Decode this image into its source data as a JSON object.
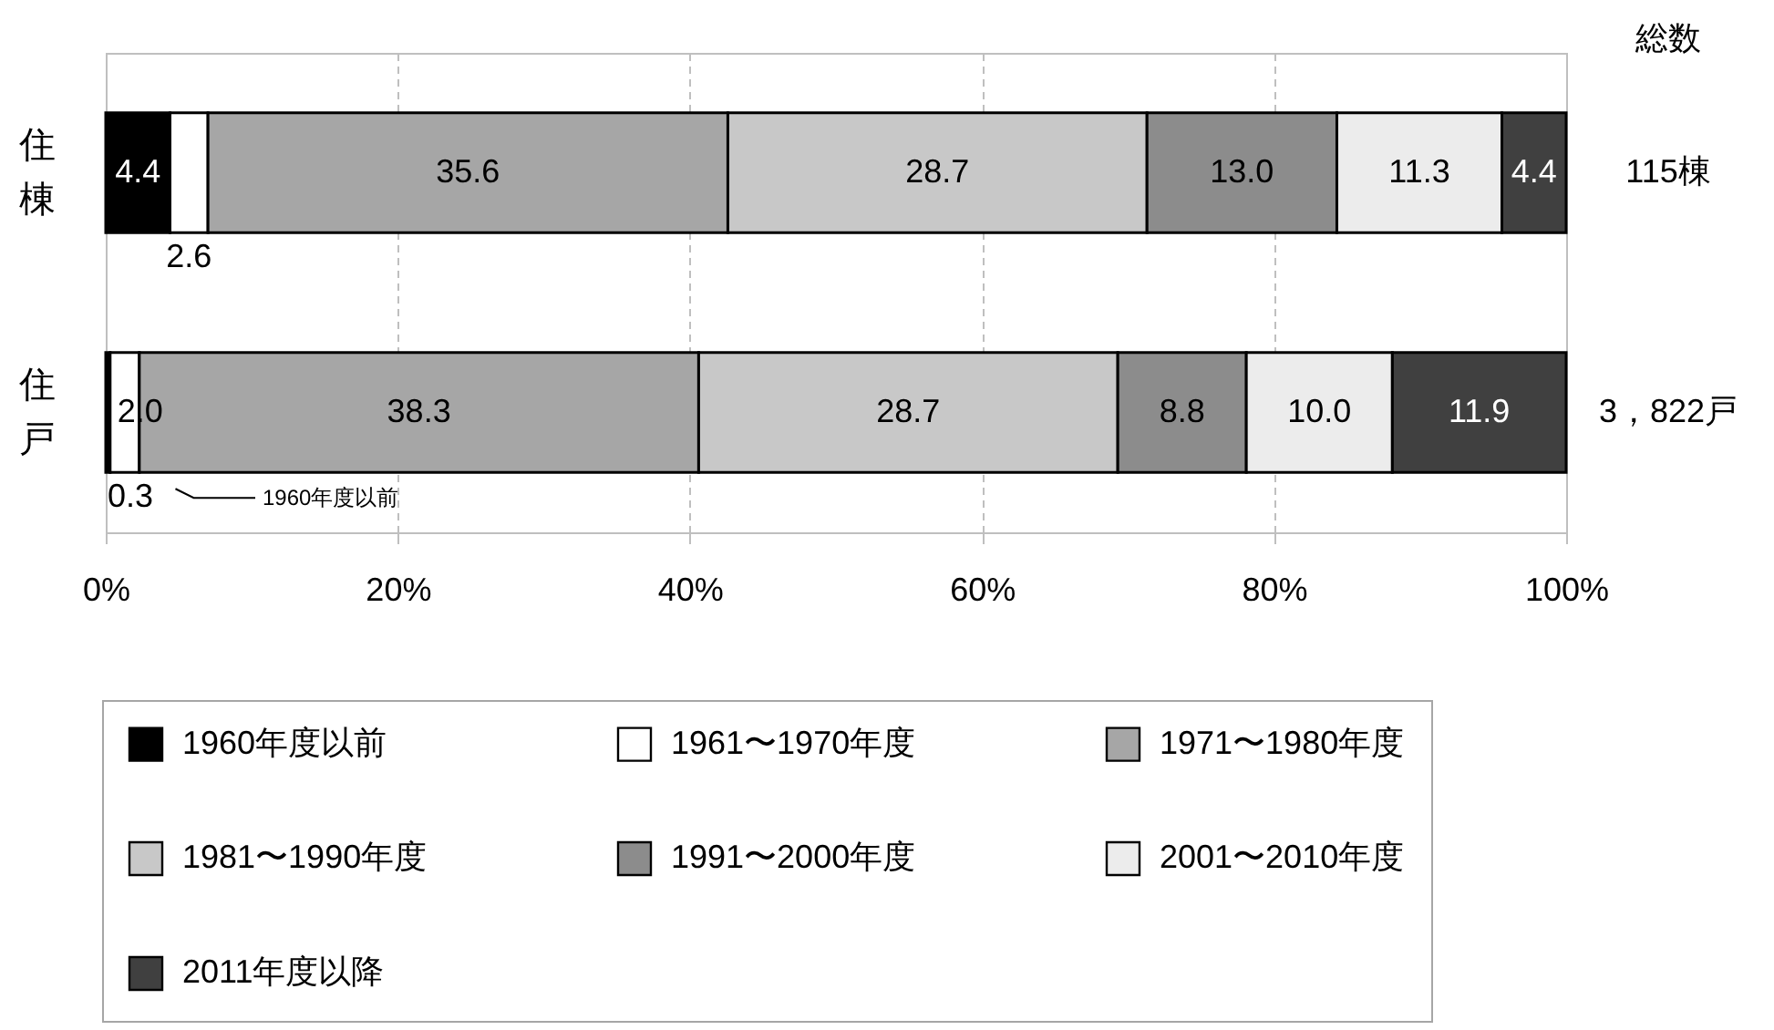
{
  "chart_data": {
    "type": "bar",
    "orientation": "horizontal",
    "stacked": true,
    "categories": [
      "住棟",
      "住戸"
    ],
    "series": [
      {
        "name": "1960年度以前",
        "color": "#000000",
        "values": [
          4.4,
          0.3
        ],
        "value_labels": [
          "4.4",
          "0.3"
        ]
      },
      {
        "name": "1961〜1970年度",
        "color": "#ffffff",
        "values": [
          2.6,
          2.0
        ],
        "value_labels": [
          "2.6",
          "2.0"
        ]
      },
      {
        "name": "1971〜1980年度",
        "color": "#a6a6a6",
        "values": [
          35.6,
          38.3
        ],
        "value_labels": [
          "35.6",
          "38.3"
        ]
      },
      {
        "name": "1981〜1990年度",
        "color": "#c8c8c8",
        "values": [
          28.7,
          28.7
        ],
        "value_labels": [
          "28.7",
          "28.7"
        ]
      },
      {
        "name": "1991〜2000年度",
        "color": "#8c8c8c",
        "values": [
          13.0,
          8.8
        ],
        "value_labels": [
          "13.0",
          "8.8"
        ]
      },
      {
        "name": "2001〜2010年度",
        "color": "#ececec",
        "values": [
          11.3,
          10.0
        ],
        "value_labels": [
          "11.3",
          "10.0"
        ]
      },
      {
        "name": "2011年度以降",
        "color": "#404040",
        "values": [
          4.4,
          11.9
        ],
        "value_labels": [
          "4.4",
          "11.9"
        ]
      }
    ],
    "xlim": [
      0,
      100
    ],
    "xticks": [
      {
        "value": 0,
        "label": "0%"
      },
      {
        "value": 20,
        "label": "20%"
      },
      {
        "value": 40,
        "label": "40%"
      },
      {
        "value": 60,
        "label": "60%"
      },
      {
        "value": 80,
        "label": "80%"
      },
      {
        "value": 100,
        "label": "100%"
      }
    ],
    "grid": "x",
    "legend": "bottom",
    "annotations": [
      "総数",
      "115棟",
      "3，822戸",
      "1960年度以前"
    ]
  }
}
